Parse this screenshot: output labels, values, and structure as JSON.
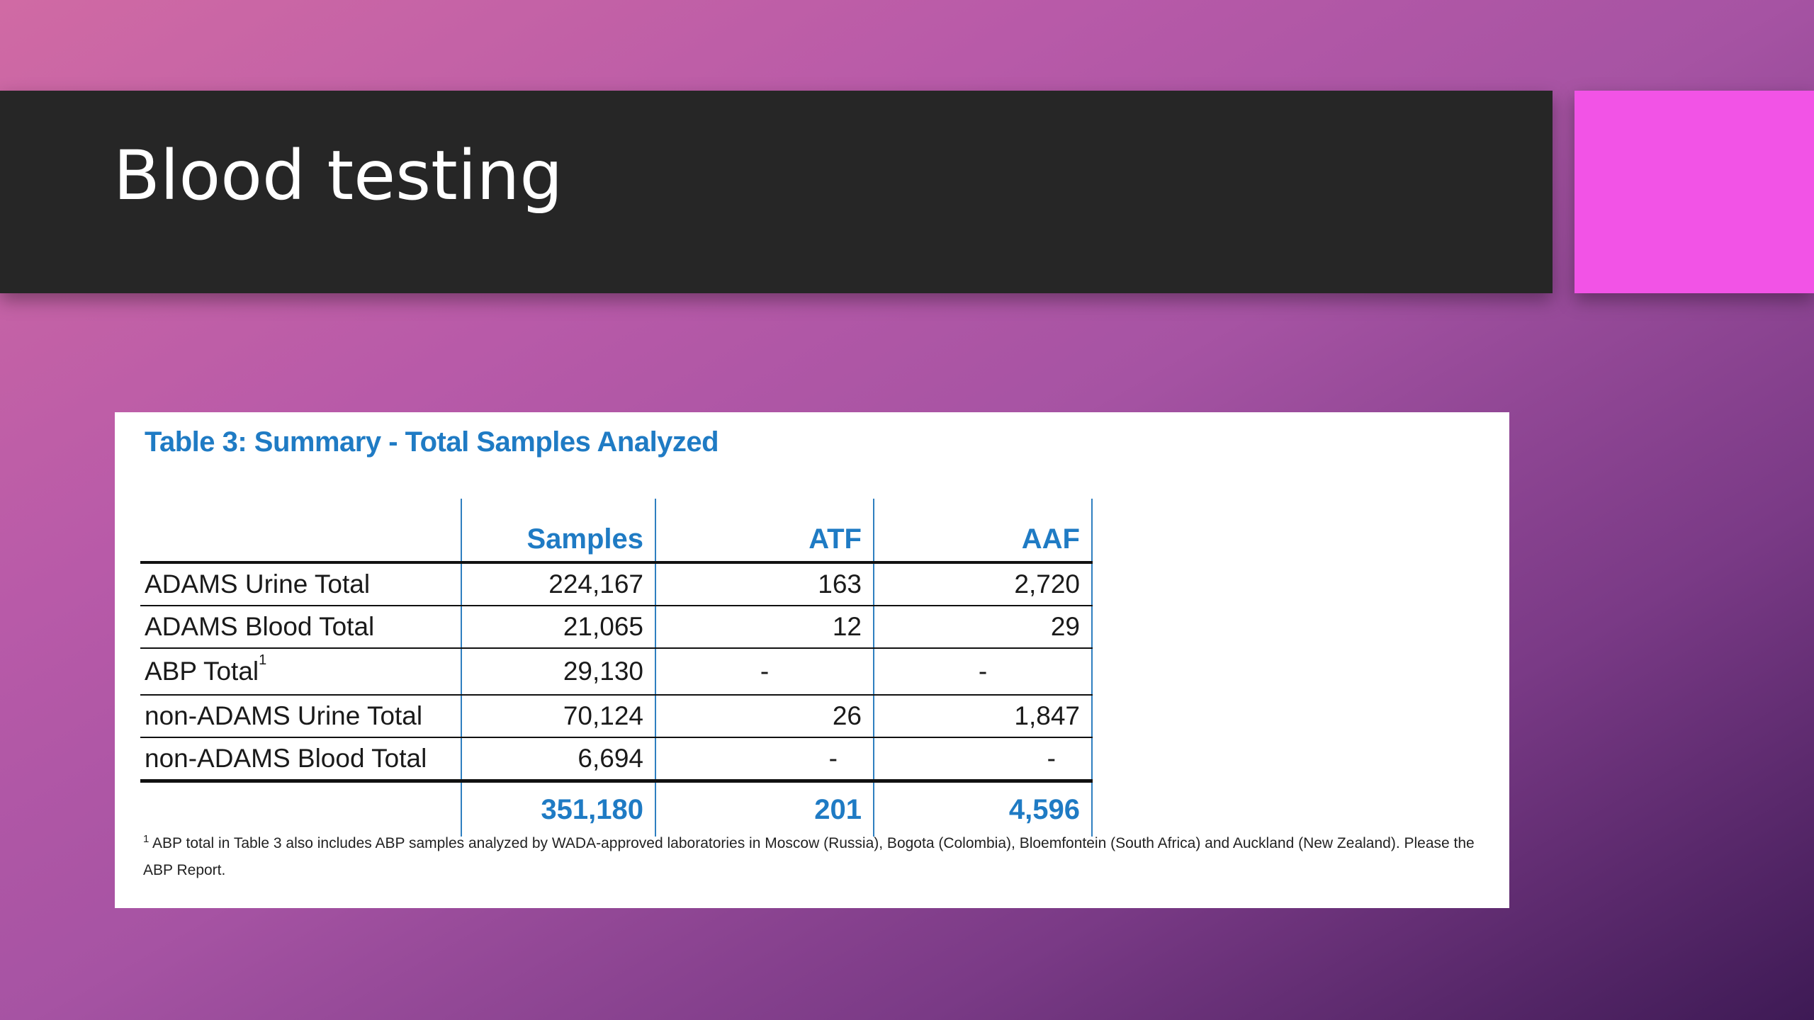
{
  "slide": {
    "title": "Blood testing"
  },
  "table": {
    "heading": "Table 3: Summary - Total Samples Analyzed",
    "columns": [
      "Samples",
      "ATF",
      "AAF"
    ],
    "rows": [
      {
        "label": "ADAMS Urine Total",
        "samples": "224,167",
        "atf": "163",
        "aaf": "2,720"
      },
      {
        "label": "ADAMS Blood Total",
        "samples": "21,065",
        "atf": "12",
        "aaf": "29"
      },
      {
        "label": "ABP Total",
        "label_sup": "1",
        "samples": "29,130",
        "atf": "-",
        "aaf": "-"
      },
      {
        "label": "non-ADAMS Urine Total",
        "samples": "70,124",
        "atf": "26",
        "aaf": "1,847"
      },
      {
        "label": "non-ADAMS Blood Total",
        "samples": "6,694",
        "atf": "-",
        "aaf": "-"
      }
    ],
    "totals": {
      "samples": "351,180",
      "atf": "201",
      "aaf": "4,596"
    },
    "footnote_marker": "1",
    "footnote": "ABP total in Table 3 also includes ABP samples analyzed by WADA-approved laboratories in Moscow (Russia), Bogota (Colombia), Bloemfontein (South Africa) and Auckland (New Zealand). Please the ABP Report."
  },
  "colors": {
    "title_bar": "#262626",
    "accent": "#f253e6",
    "table_blue": "#1f7bc4"
  }
}
